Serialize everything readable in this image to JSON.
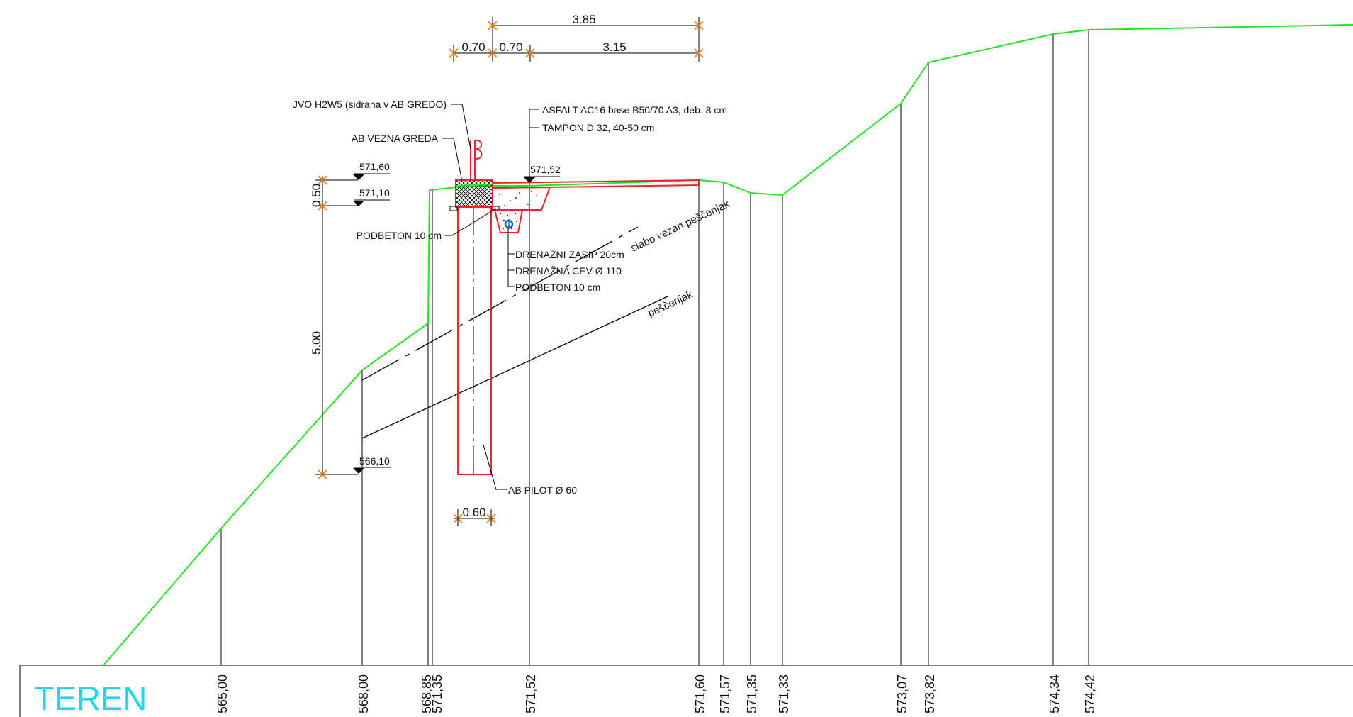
{
  "dimensions_top": {
    "total_width": "3.85",
    "segment_1": "0.70",
    "segment_2": "0.70",
    "segment_3": "3.15"
  },
  "dimensions_left": {
    "height_top": "0.50",
    "height_pile": "5.00"
  },
  "dimension_pile_width": "0.60",
  "elevation_marks": {
    "top_barrier": "571,60",
    "beam_bottom": "571,10",
    "road_edge": "571,52",
    "pile_toe": "566,10"
  },
  "callouts": {
    "guardrail": "JVO H2W5 (sidrana v AB GREDO)",
    "beam": "AB VEZNA GREDA",
    "asphalt": "ASFALT AC16 base B50/70 A3, deb. 8 cm",
    "base_course": "TAMPON D 32, 40-50 cm",
    "lean_concrete_beam": "PODBETON 10 cm",
    "drain_fill": "DRENAŽNI ZASIP 20cm",
    "drain_pipe": "DRENAŽNA CEV Ø 110",
    "lean_concrete_drain": "PODBETON 10 cm",
    "pile": "AB PILOT Ø 60"
  },
  "soil_layers": {
    "upper": "slabo vezan peščenjak",
    "lower": "peščenjak"
  },
  "terrain_band": {
    "label": "TEREN",
    "label_color": "#21d6e6",
    "values": [
      "565,00",
      "568,00",
      "568,85",
      "571,35",
      "571,52",
      "571,60",
      "571,57",
      "571,35",
      "571,33",
      "573,07",
      "573,82",
      "574,34",
      "574,42"
    ]
  },
  "colors": {
    "terrain_line": "#22e622",
    "structure": "#e8262b",
    "dimension_ticks": "#f08a1c",
    "drain_pipe": "#1565c0"
  }
}
